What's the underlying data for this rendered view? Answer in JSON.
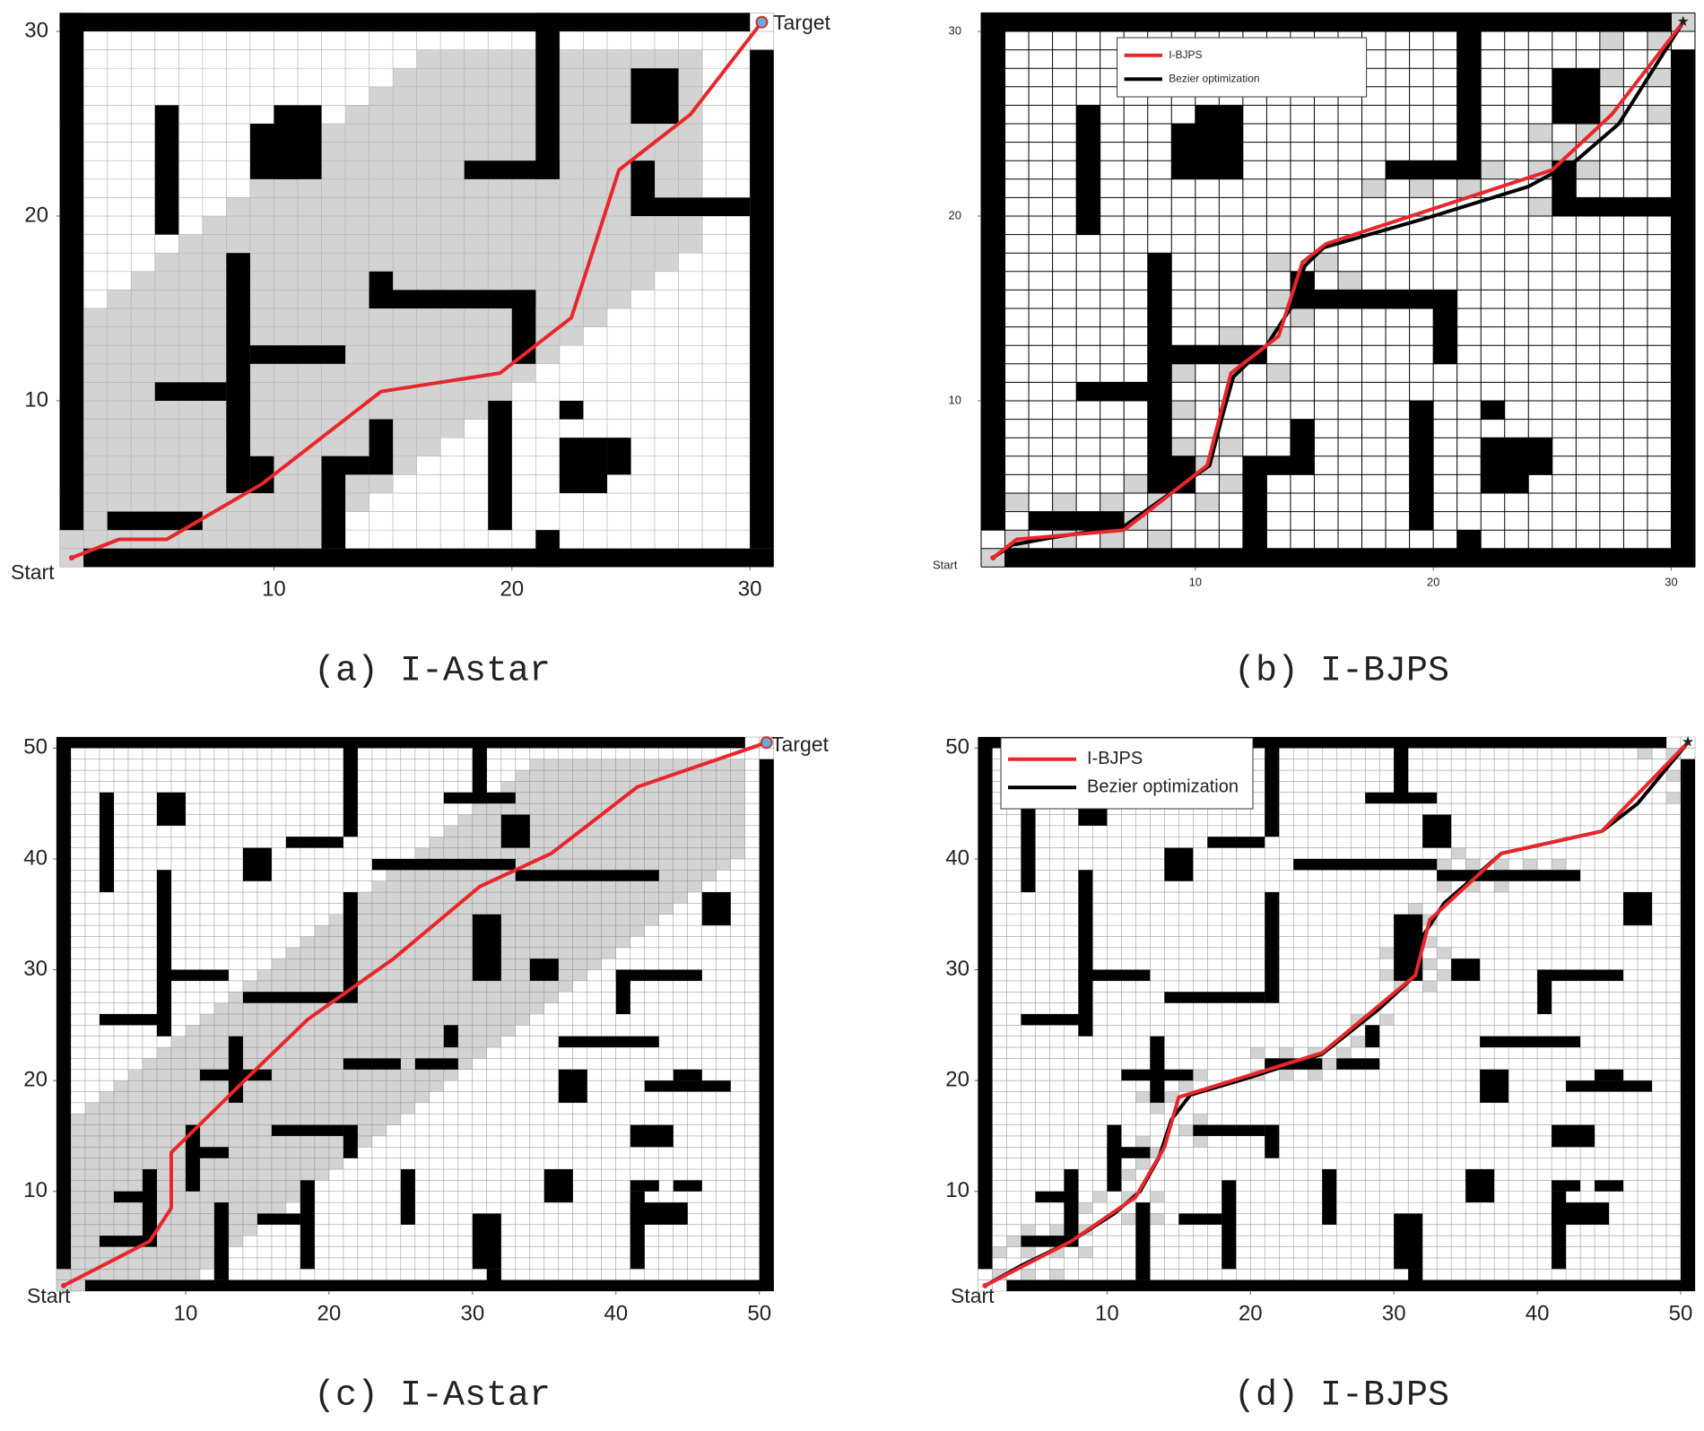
{
  "chart_data": [
    {
      "type": "line",
      "caption": "(a) I-Astar",
      "start_label": "Start",
      "target_label": "Target",
      "xlim": [
        1,
        31
      ],
      "ylim": [
        1,
        31
      ],
      "xticks": [
        10,
        20,
        30
      ],
      "yticks": [
        10,
        20,
        30
      ],
      "series": [
        {
          "color": "#e8262b",
          "x": [
            1.5,
            3.5,
            5.5,
            9.5,
            14.5,
            19.5,
            22.5,
            24.5,
            27.5,
            30.5
          ],
          "values": [
            1.5,
            2.5,
            2.5,
            5.5,
            10.5,
            11.5,
            14.5,
            22.5,
            25.5,
            30.5
          ]
        }
      ]
    },
    {
      "type": "line",
      "caption": "(b) I-BJPS",
      "start_label": "Start",
      "xlim": [
        1,
        31
      ],
      "ylim": [
        1,
        31
      ],
      "xticks": [
        10,
        20,
        30
      ],
      "yticks": [
        10,
        20,
        30
      ],
      "series": [
        {
          "name": "I-BJPS",
          "color": "#e8262b",
          "x": [
            1.5,
            2.5,
            7,
            10.5,
            11.5,
            13.5,
            14.5,
            15.5,
            25,
            27.5,
            30.5
          ],
          "values": [
            1.5,
            2.5,
            3,
            6.5,
            11.5,
            13.5,
            17.5,
            18.5,
            22.5,
            25.5,
            30.5
          ]
        },
        {
          "name": "Bezier optimization",
          "color": "#000000",
          "x": [
            1.5,
            2.3,
            4,
            7,
            9.5,
            10.6,
            11.1,
            11.6,
            13,
            14,
            14.6,
            15.4,
            20,
            24,
            26,
            27.8,
            30.5
          ],
          "values": [
            1.5,
            2.2,
            2.6,
            3.2,
            5.5,
            6.5,
            9,
            11.3,
            13,
            15,
            17.3,
            18.3,
            20,
            21.6,
            23,
            25,
            30.5
          ]
        }
      ]
    },
    {
      "type": "line",
      "caption": "(c) I-Astar",
      "start_label": "Start",
      "target_label": "Target",
      "xlim": [
        1,
        51
      ],
      "ylim": [
        1,
        51
      ],
      "xticks": [
        10,
        20,
        30,
        40,
        50
      ],
      "yticks": [
        10,
        20,
        30,
        40,
        50
      ],
      "series": [
        {
          "color": "#e8262b",
          "x": [
            1.5,
            4.5,
            7.5,
            9,
            9,
            14.5,
            18.5,
            24.5,
            30.5,
            35.5,
            41.5,
            50.5
          ],
          "values": [
            1.5,
            3.5,
            5.5,
            8.5,
            13.5,
            20.5,
            25.5,
            31,
            37.5,
            40.5,
            46.5,
            50.5
          ]
        }
      ]
    },
    {
      "type": "line",
      "caption": "(d) I-BJPS",
      "start_label": "Start",
      "xlim": [
        1,
        51
      ],
      "ylim": [
        1,
        51
      ],
      "xticks": [
        10,
        20,
        30,
        40,
        50
      ],
      "yticks": [
        10,
        20,
        30,
        40,
        50
      ],
      "series": [
        {
          "name": "I-BJPS",
          "color": "#e8262b",
          "x": [
            1.5,
            7.5,
            12,
            14,
            15,
            25,
            31.5,
            32.5,
            37.5,
            44.5,
            50.5
          ],
          "values": [
            1.5,
            5.5,
            9.5,
            14,
            18.5,
            22.5,
            29.5,
            34.5,
            40.5,
            42.5,
            50.5
          ]
        },
        {
          "name": "Bezier optimization",
          "color": "#000000",
          "x": [
            1.5,
            4,
            7.5,
            10.5,
            12.3,
            13.6,
            14.5,
            15.8,
            20,
            25,
            29,
            31.5,
            32,
            33.5,
            37.5,
            44.5,
            47,
            50.5
          ],
          "values": [
            1.5,
            3.3,
            5.5,
            8,
            10,
            13,
            16.5,
            18.7,
            20.3,
            22.4,
            26.5,
            29.5,
            33,
            36,
            40.5,
            42.5,
            45,
            50.5
          ]
        }
      ]
    }
  ]
}
